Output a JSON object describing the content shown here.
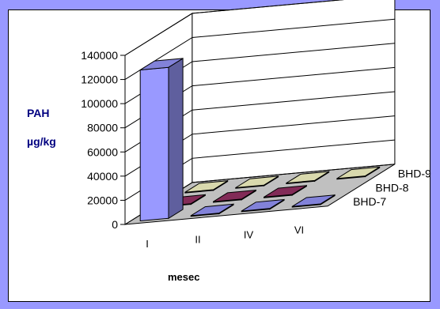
{
  "chart_data": {
    "type": "bar",
    "categories": [
      "I",
      "II",
      "IV",
      "VI"
    ],
    "series": [
      {
        "name": "BHD-7",
        "values": [
          125000,
          0,
          0,
          0
        ]
      },
      {
        "name": "BHD-8",
        "values": [
          0,
          0,
          0,
          null
        ]
      },
      {
        "name": "BHD-9",
        "values": [
          0,
          0,
          0,
          0
        ]
      }
    ],
    "ylabel_line1": "PAH",
    "ylabel_line2": "µg/kg",
    "xlabel": "mesec",
    "ylim": [
      0,
      140000
    ],
    "yticks": [
      "0",
      "20000",
      "40000",
      "60000",
      "80000",
      "100000",
      "120000",
      "140000"
    ],
    "yticks_values": [
      0,
      20000,
      40000,
      60000,
      80000,
      100000,
      120000,
      140000
    ],
    "grid": true,
    "colors": {
      "BHD-7": "#9999ff",
      "BHD-8": "#993366",
      "BHD-9": "#ffffcc",
      "frame": "#9999ff",
      "wall": "#ffffff",
      "floor": "#c0c0c0"
    }
  }
}
